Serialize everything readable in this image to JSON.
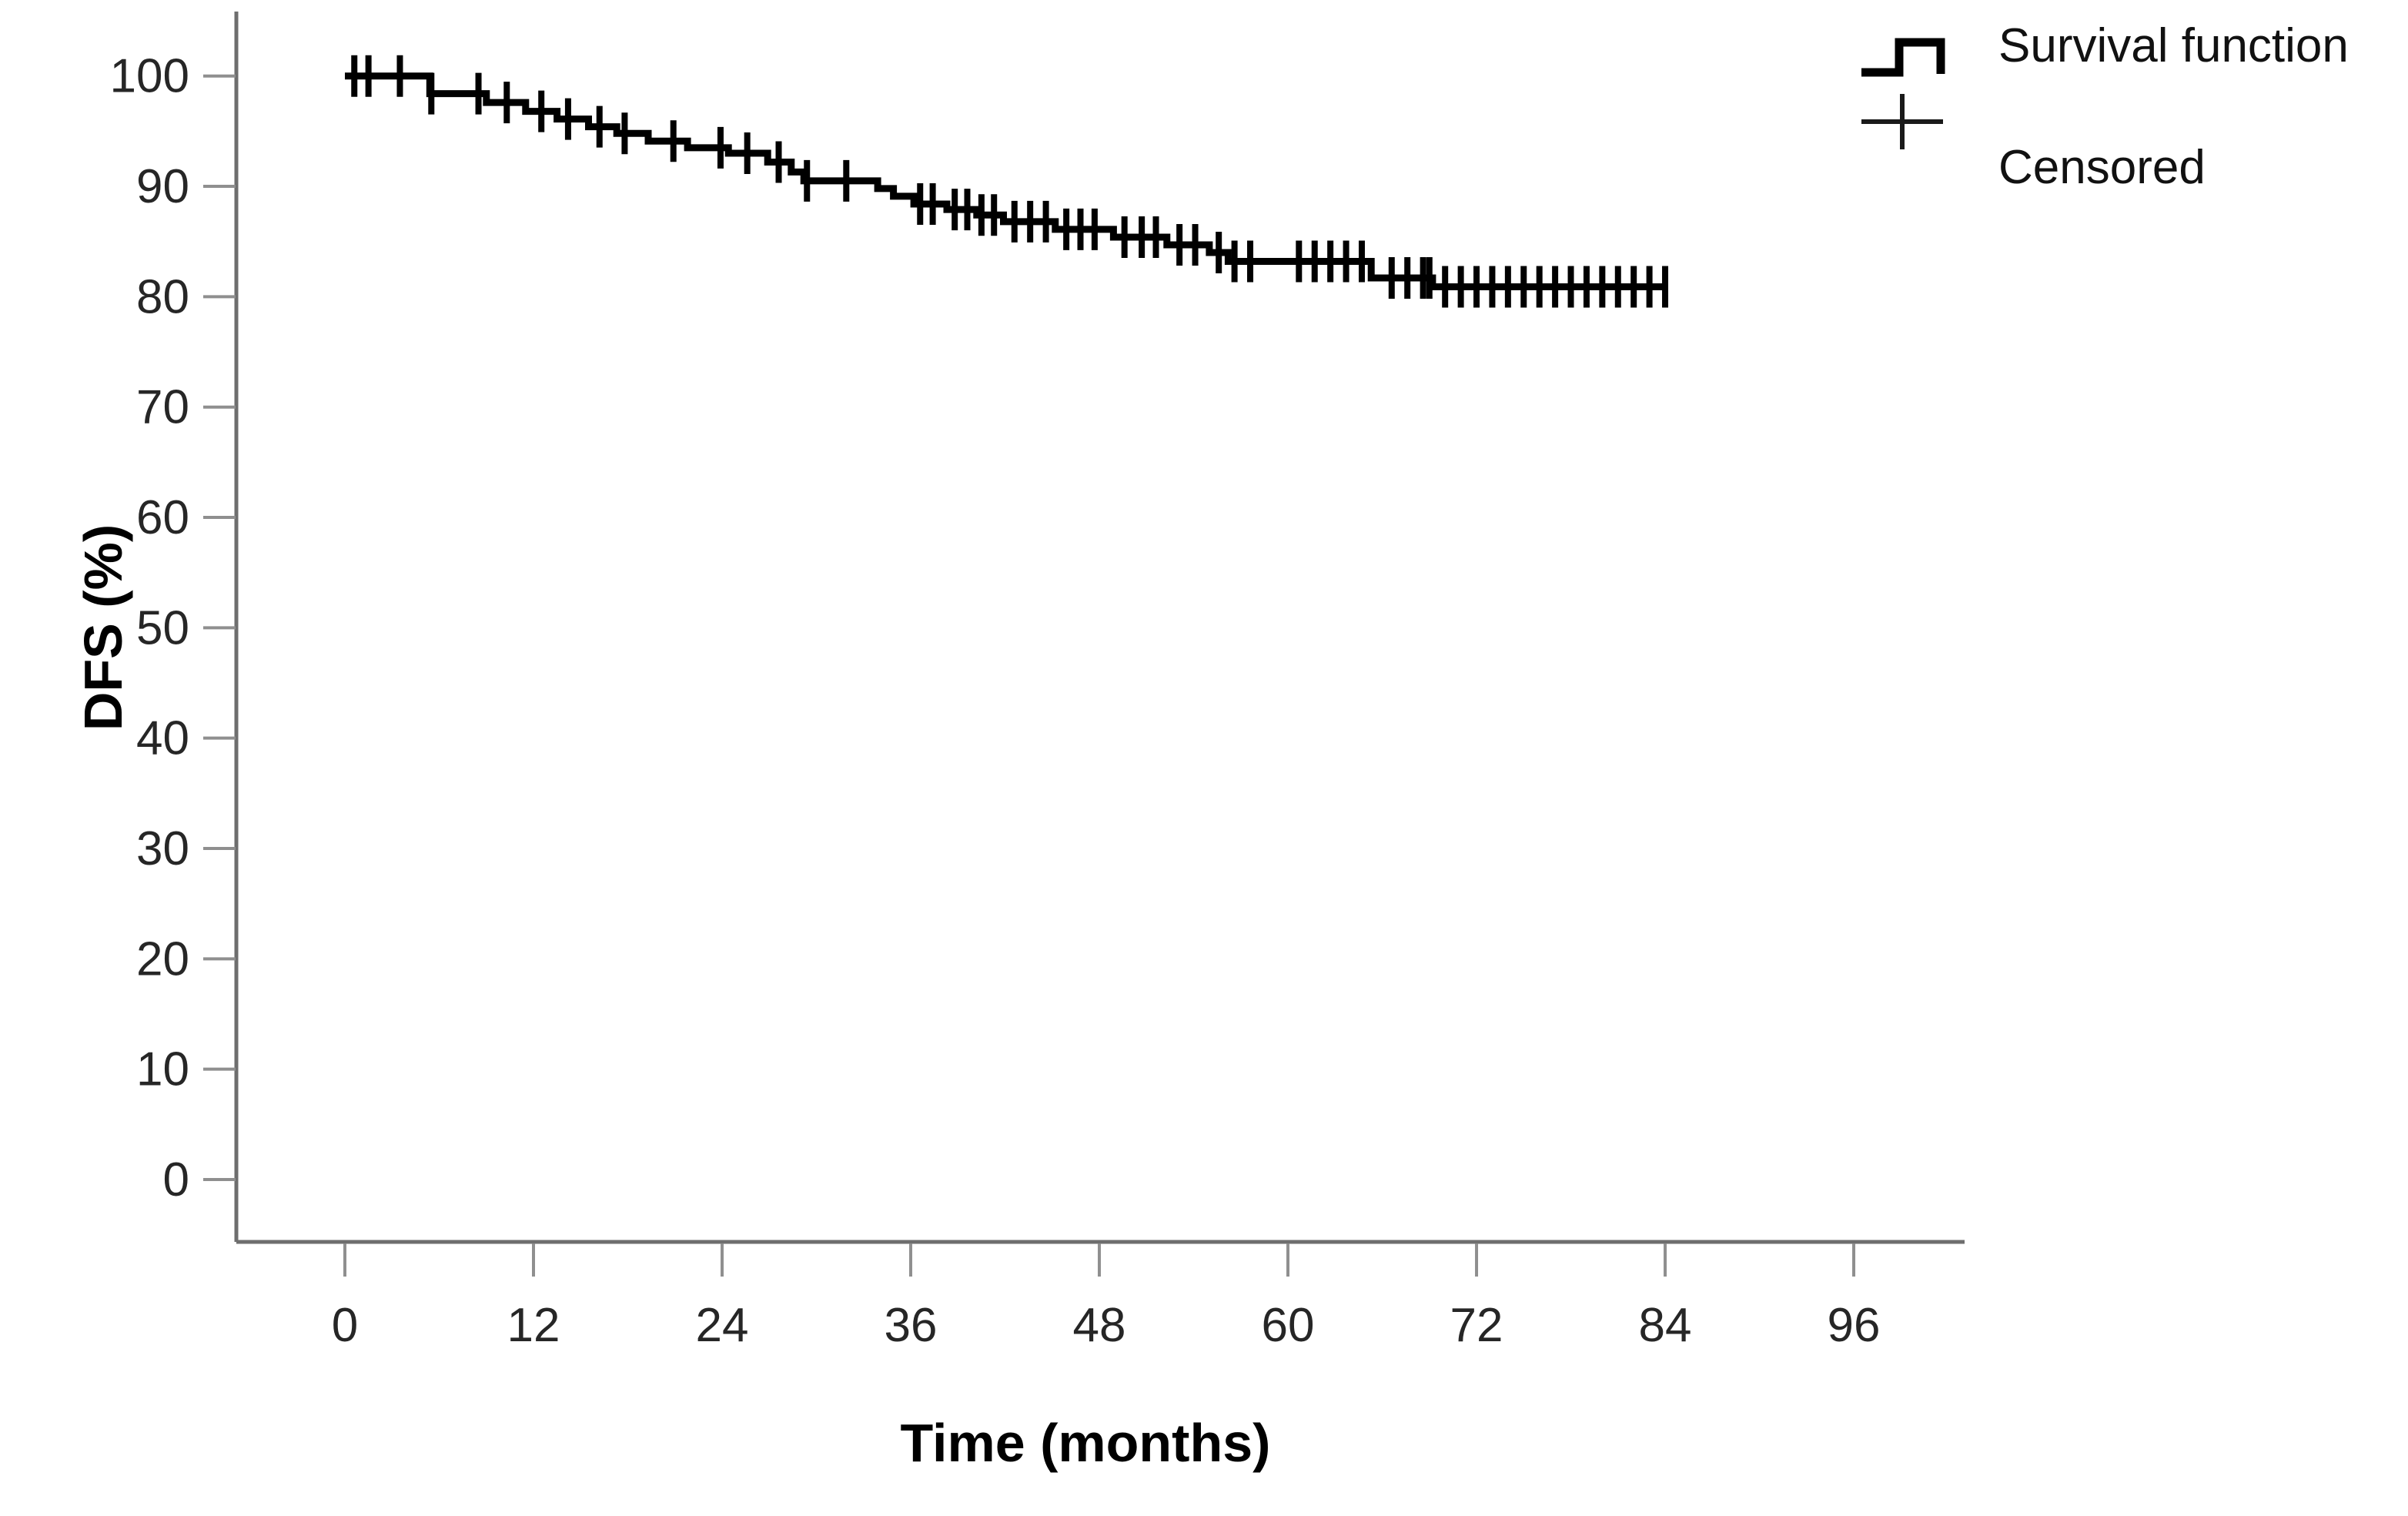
{
  "colors": {
    "background": "#ffffff",
    "curve": "#000000",
    "axis_line": "#6e6e6e",
    "tick_line": "#8f8f8f",
    "tick_label": "#262626",
    "title": "#000000"
  },
  "chart_data": {
    "type": "line",
    "subtype": "kaplan_meier_step_function",
    "title": "",
    "xlabel": "Time (months)",
    "ylabel": "DFS (%)",
    "x_ticks": [
      0,
      12,
      24,
      36,
      48,
      60,
      72,
      84,
      96
    ],
    "y_ticks": [
      0,
      10,
      20,
      30,
      40,
      50,
      60,
      70,
      80,
      90,
      100
    ],
    "xlim": [
      0,
      96
    ],
    "ylim": [
      0,
      100
    ],
    "grid": false,
    "legend_position": "top-right",
    "legend": [
      {
        "label": "Survival function",
        "marker": "step-line"
      },
      {
        "label": "Censored",
        "marker": "plus"
      }
    ],
    "end_time": 84,
    "survival_steps": [
      [
        0,
        100
      ],
      [
        5.4,
        98.4
      ],
      [
        9,
        97.6
      ],
      [
        11.5,
        96.8
      ],
      [
        13.5,
        96.1
      ],
      [
        15.5,
        95.4
      ],
      [
        17.3,
        94.8
      ],
      [
        19.3,
        94.1
      ],
      [
        21.8,
        93.5
      ],
      [
        24.4,
        93.0
      ],
      [
        26.9,
        92.2
      ],
      [
        28.4,
        91.3
      ],
      [
        29.2,
        90.5
      ],
      [
        33.9,
        89.8
      ],
      [
        34.9,
        89.1
      ],
      [
        36.2,
        88.4
      ],
      [
        38.3,
        87.9
      ],
      [
        40.2,
        87.4
      ],
      [
        41.9,
        86.8
      ],
      [
        45.2,
        86.1
      ],
      [
        48.9,
        85.4
      ],
      [
        52.3,
        84.7
      ],
      [
        55.0,
        84.0
      ],
      [
        56.2,
        83.2
      ],
      [
        65.3,
        81.7
      ],
      [
        69.2,
        80.9
      ]
    ],
    "censored": [
      [
        0.6,
        100
      ],
      [
        1.5,
        100
      ],
      [
        3.5,
        100
      ],
      [
        5.5,
        98.4
      ],
      [
        8.5,
        98.4
      ],
      [
        10.3,
        97.6
      ],
      [
        12.5,
        96.8
      ],
      [
        14.2,
        96.1
      ],
      [
        16.2,
        95.4
      ],
      [
        17.8,
        94.8
      ],
      [
        20.9,
        94.1
      ],
      [
        23.9,
        93.5
      ],
      [
        25.6,
        93.0
      ],
      [
        27.6,
        92.2
      ],
      [
        29.4,
        90.5
      ],
      [
        31.9,
        90.5
      ],
      [
        36.6,
        88.4
      ],
      [
        37.4,
        88.4
      ],
      [
        38.8,
        87.9
      ],
      [
        39.6,
        87.9
      ],
      [
        40.5,
        87.4
      ],
      [
        41.3,
        87.4
      ],
      [
        42.6,
        86.8
      ],
      [
        43.6,
        86.8
      ],
      [
        44.6,
        86.8
      ],
      [
        45.9,
        86.1
      ],
      [
        46.8,
        86.1
      ],
      [
        47.7,
        86.1
      ],
      [
        49.6,
        85.4
      ],
      [
        50.7,
        85.4
      ],
      [
        51.6,
        85.4
      ],
      [
        53.1,
        84.7
      ],
      [
        54.1,
        84.7
      ],
      [
        55.6,
        84.0
      ],
      [
        56.6,
        83.2
      ],
      [
        57.6,
        83.2
      ],
      [
        60.7,
        83.2
      ],
      [
        61.7,
        83.2
      ],
      [
        62.7,
        83.2
      ],
      [
        63.7,
        83.2
      ],
      [
        64.7,
        83.2
      ],
      [
        66.6,
        81.7
      ],
      [
        67.6,
        81.7
      ],
      [
        68.6,
        81.7
      ],
      [
        69.0,
        81.7
      ],
      [
        70,
        80.9
      ],
      [
        71,
        80.9
      ],
      [
        72,
        80.9
      ],
      [
        73,
        80.9
      ],
      [
        74,
        80.9
      ],
      [
        75,
        80.9
      ],
      [
        76,
        80.9
      ],
      [
        77,
        80.9
      ],
      [
        78,
        80.9
      ],
      [
        79,
        80.9
      ],
      [
        80,
        80.9
      ],
      [
        81,
        80.9
      ],
      [
        82,
        80.9
      ],
      [
        83,
        80.9
      ],
      [
        84,
        80.9
      ]
    ]
  }
}
